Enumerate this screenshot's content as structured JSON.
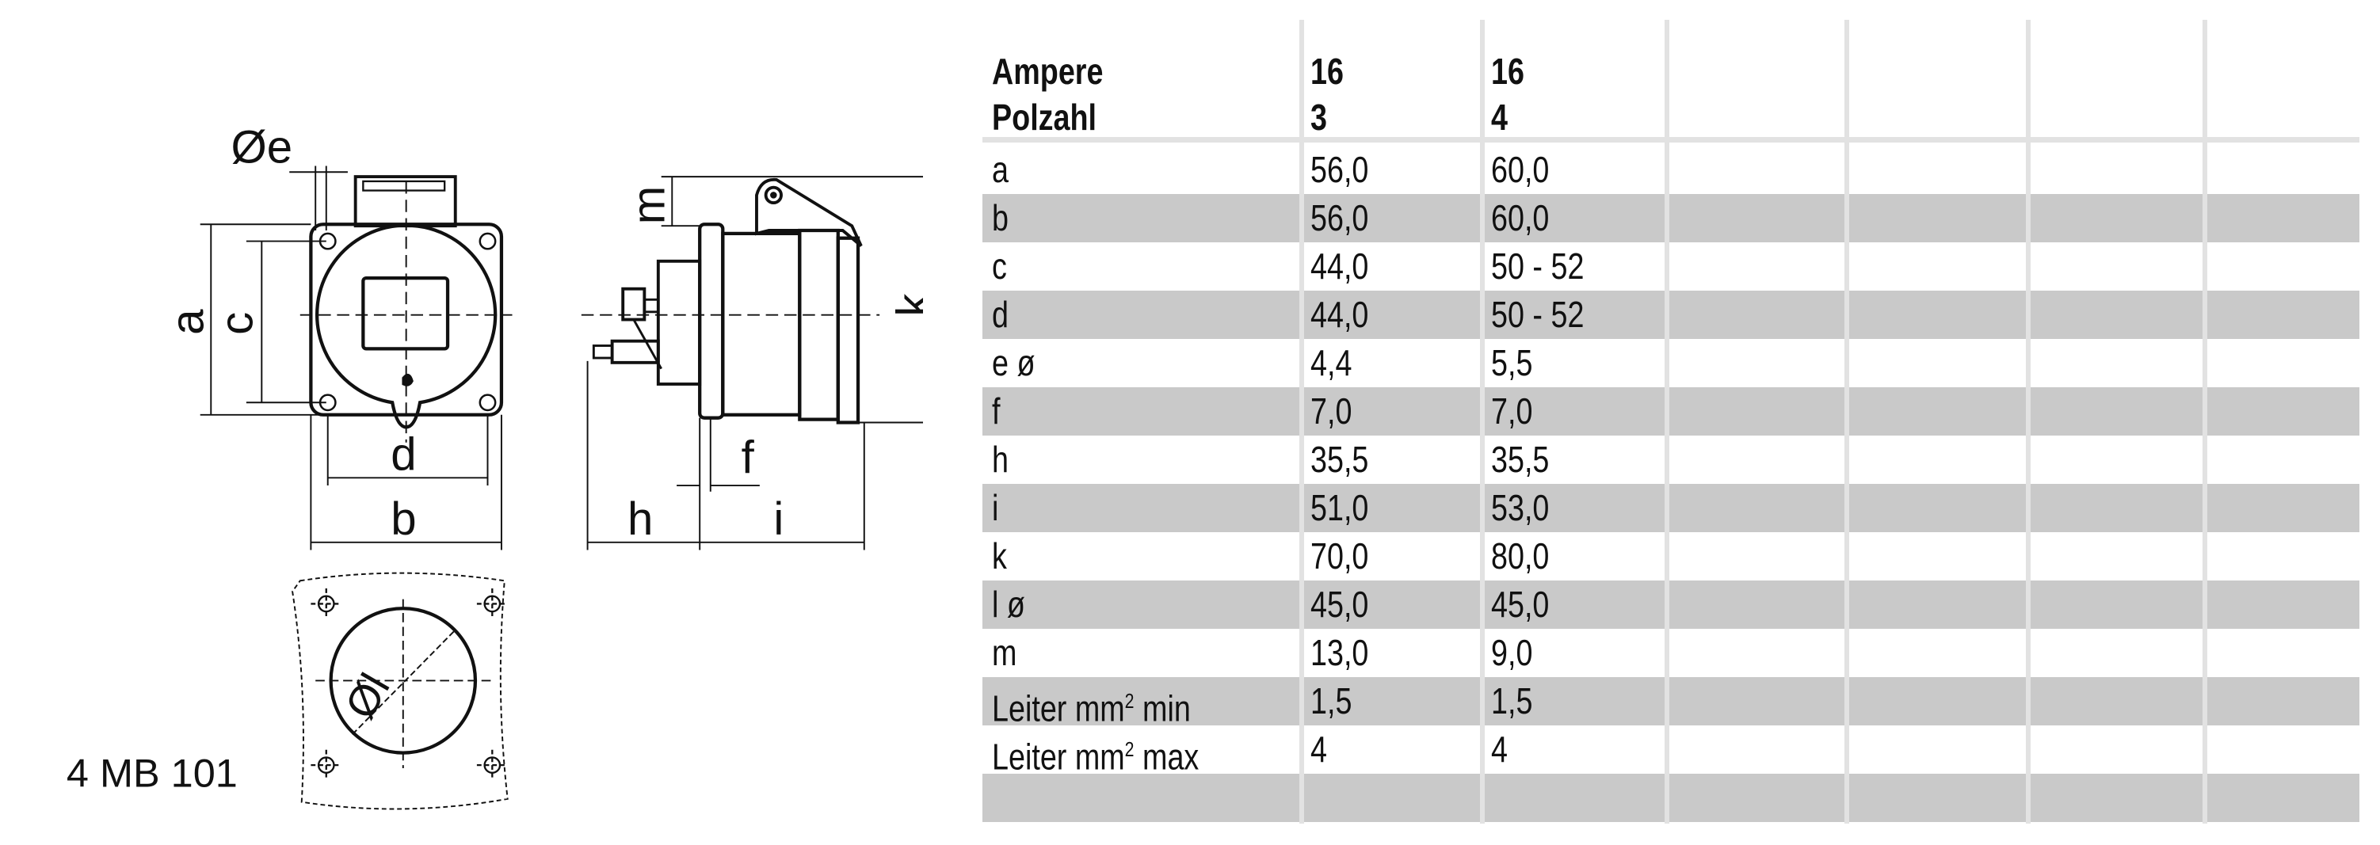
{
  "drawing": {
    "model_label": "4 MB 101",
    "dim_labels": {
      "e": "Øe",
      "a": "a",
      "c": "c",
      "d": "d",
      "b": "b",
      "m": "m",
      "k": "k",
      "f": "f",
      "h": "h",
      "i": "i",
      "l": "Øl"
    }
  },
  "table": {
    "header": {
      "label_line1": "Ampere",
      "label_line2": "Polzahl",
      "columns": [
        {
          "line1": "16",
          "line2": "3"
        },
        {
          "line1": "16",
          "line2": "4"
        }
      ]
    },
    "rows": [
      {
        "label": "a",
        "v1": "56,0",
        "v2": "60,0"
      },
      {
        "label": "b",
        "v1": "56,0",
        "v2": "60,0"
      },
      {
        "label": "c",
        "v1": "44,0",
        "v2": "50 - 52"
      },
      {
        "label": "d",
        "v1": "44,0",
        "v2": "50 - 52"
      },
      {
        "label": "e ø",
        "v1": "4,4",
        "v2": "5,5"
      },
      {
        "label": "f",
        "v1": "7,0",
        "v2": "7,0"
      },
      {
        "label": "h",
        "v1": "35,5",
        "v2": "35,5"
      },
      {
        "label": "i",
        "v1": "51,0",
        "v2": "53,0"
      },
      {
        "label": "k",
        "v1": "70,0",
        "v2": "80,0"
      },
      {
        "label": "l ø",
        "v1": "45,0",
        "v2": "45,0"
      },
      {
        "label": "m",
        "v1": "13,0",
        "v2": "9,0"
      },
      {
        "label_pre": "Leiter mm",
        "label_sup": "2",
        "label_post": " min",
        "v1": "1,5",
        "v2": "1,5"
      },
      {
        "label_pre": "Leiter mm",
        "label_sup": "2",
        "label_post": " max",
        "v1": "4",
        "v2": "4"
      },
      {
        "label": "",
        "v1": "",
        "v2": ""
      }
    ],
    "colors": {
      "shade": "#c9c9c9",
      "grid": "#e2e2e2"
    }
  }
}
